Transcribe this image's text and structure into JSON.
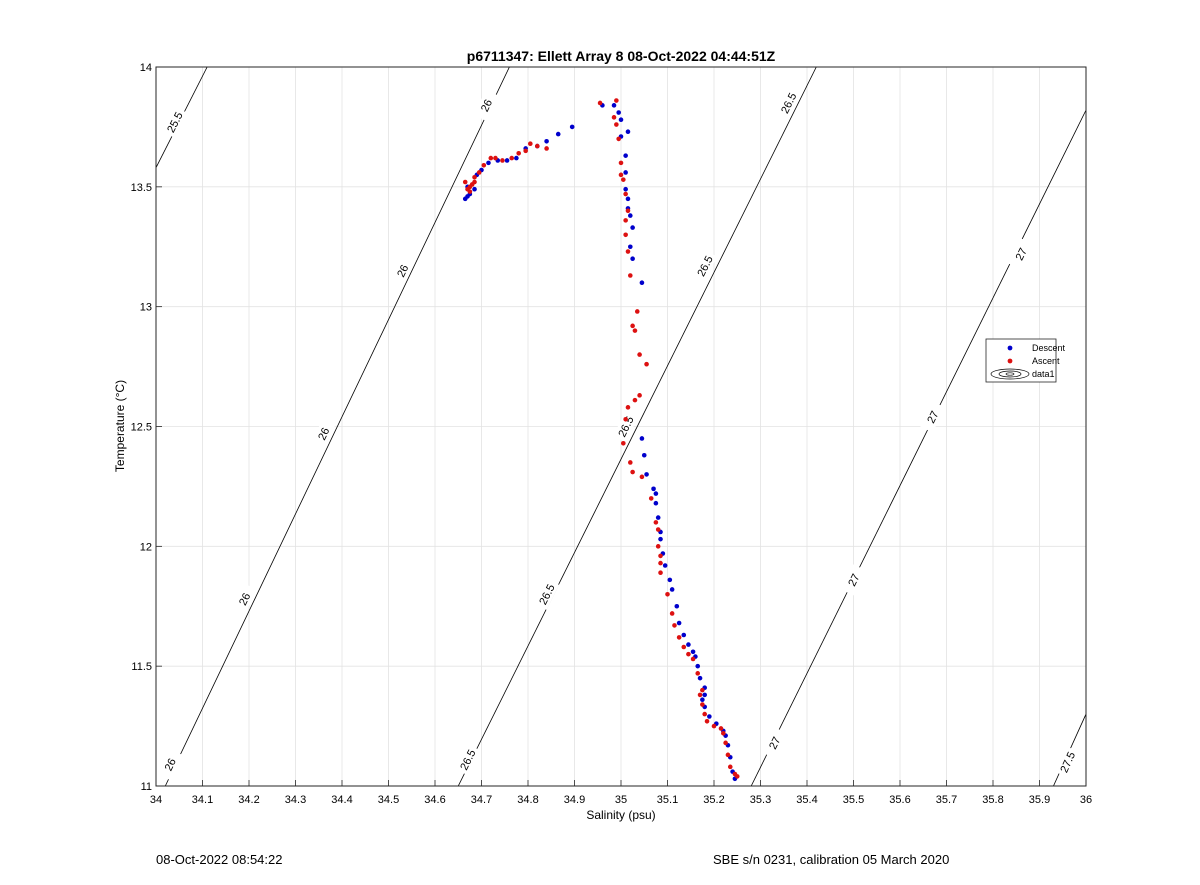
{
  "footer": {
    "timestamp": "08-Oct-2022 08:54:22",
    "sensor": "SBE s/n 0231, calibration 05 March 2020"
  },
  "colors": {
    "descent": "#0000cc",
    "ascent": "#dd1111",
    "contour": "#000000",
    "grid": "#e3e3e3"
  },
  "chart_data": {
    "type": "scatter",
    "title": "p6711347: Ellett Array 8 08-Oct-2022 04:44:51Z",
    "xlabel": "Salinity (psu)",
    "ylabel": "Temperature (°C)",
    "xlim": [
      34,
      36
    ],
    "ylim": [
      11,
      14
    ],
    "grid": true,
    "x_ticks": [
      34,
      34.1,
      34.2,
      34.3,
      34.4,
      34.5,
      34.6,
      34.7,
      34.8,
      34.9,
      35,
      35.1,
      35.2,
      35.3,
      35.4,
      35.5,
      35.6,
      35.7,
      35.8,
      35.9,
      36
    ],
    "x_tick_labels": [
      "34",
      "34.1",
      "34.2",
      "34.3",
      "34.4",
      "34.5",
      "34.6",
      "34.7",
      "34.8",
      "34.9",
      "35",
      "35.1",
      "35.2",
      "35.3",
      "35.4",
      "35.5",
      "35.6",
      "35.7",
      "35.8",
      "35.9",
      "36"
    ],
    "y_ticks": [
      11,
      11.5,
      12,
      12.5,
      13,
      13.5,
      14
    ],
    "y_tick_labels": [
      "11",
      "11.5",
      "12",
      "12.5",
      "13",
      "13.5",
      "14"
    ],
    "legend": {
      "placement": "right",
      "entries": [
        "Descent",
        "Ascent",
        "data1"
      ]
    },
    "contours": [
      {
        "level": "25.5",
        "points": [
          [
            34.0,
            13.58
          ],
          [
            34.11,
            14.0
          ]
        ],
        "labels": [
          {
            "x": 34.04,
            "y": 13.77
          }
        ]
      },
      {
        "level": "26",
        "points": [
          [
            34.02,
            11.0
          ],
          [
            34.76,
            14.0
          ]
        ],
        "labels": [
          {
            "x": 34.03,
            "y": 11.09
          },
          {
            "x": 34.19,
            "y": 11.78
          },
          {
            "x": 34.36,
            "y": 12.47
          },
          {
            "x": 34.53,
            "y": 13.15
          },
          {
            "x": 34.71,
            "y": 13.84
          }
        ]
      },
      {
        "level": "26.5",
        "points": [
          [
            34.65,
            11.0
          ],
          [
            35.42,
            14.0
          ]
        ],
        "labels": [
          {
            "x": 34.67,
            "y": 11.11
          },
          {
            "x": 34.84,
            "y": 11.8
          },
          {
            "x": 35.01,
            "y": 12.5
          },
          {
            "x": 35.18,
            "y": 13.17
          },
          {
            "x": 35.36,
            "y": 13.85
          }
        ]
      },
      {
        "level": "27",
        "points": [
          [
            35.28,
            11.0
          ],
          [
            36.0,
            13.82
          ]
        ],
        "labels": [
          {
            "x": 35.33,
            "y": 11.18
          },
          {
            "x": 35.5,
            "y": 11.86
          },
          {
            "x": 35.67,
            "y": 12.54
          },
          {
            "x": 35.86,
            "y": 13.22
          }
        ]
      },
      {
        "level": "27.5",
        "points": [
          [
            35.93,
            11.0
          ],
          [
            36.0,
            11.3
          ]
        ],
        "labels": [
          {
            "x": 35.96,
            "y": 11.1
          }
        ]
      }
    ],
    "series": [
      {
        "name": "Descent",
        "marker": "dot",
        "points": [
          [
            35.245,
            11.03
          ],
          [
            35.24,
            11.06
          ],
          [
            35.235,
            11.12
          ],
          [
            35.23,
            11.17
          ],
          [
            35.225,
            11.21
          ],
          [
            35.22,
            11.23
          ],
          [
            35.205,
            11.26
          ],
          [
            35.19,
            11.29
          ],
          [
            35.18,
            11.33
          ],
          [
            35.175,
            11.36
          ],
          [
            35.18,
            11.38
          ],
          [
            35.18,
            11.41
          ],
          [
            35.17,
            11.45
          ],
          [
            35.165,
            11.5
          ],
          [
            35.16,
            11.54
          ],
          [
            35.155,
            11.56
          ],
          [
            35.145,
            11.59
          ],
          [
            35.135,
            11.63
          ],
          [
            35.125,
            11.68
          ],
          [
            35.12,
            11.75
          ],
          [
            35.11,
            11.82
          ],
          [
            35.105,
            11.86
          ],
          [
            35.095,
            11.92
          ],
          [
            35.09,
            11.97
          ],
          [
            35.085,
            12.03
          ],
          [
            35.085,
            12.06
          ],
          [
            35.08,
            12.12
          ],
          [
            35.075,
            12.18
          ],
          [
            35.075,
            12.22
          ],
          [
            35.07,
            12.24
          ],
          [
            35.055,
            12.3
          ],
          [
            35.05,
            12.38
          ],
          [
            35.045,
            12.45
          ],
          [
            35.025,
            13.2
          ],
          [
            35.045,
            13.1
          ],
          [
            35.02,
            13.25
          ],
          [
            35.025,
            13.33
          ],
          [
            35.02,
            13.38
          ],
          [
            35.015,
            13.41
          ],
          [
            35.015,
            13.45
          ],
          [
            35.01,
            13.49
          ],
          [
            35.01,
            13.56
          ],
          [
            35.01,
            13.63
          ],
          [
            35.0,
            13.71
          ],
          [
            35.015,
            13.73
          ],
          [
            35.0,
            13.78
          ],
          [
            34.995,
            13.81
          ],
          [
            34.985,
            13.84
          ],
          [
            34.96,
            13.84
          ],
          [
            34.895,
            13.75
          ],
          [
            34.865,
            13.72
          ],
          [
            34.84,
            13.69
          ],
          [
            34.82,
            13.67
          ],
          [
            34.795,
            13.66
          ],
          [
            34.775,
            13.62
          ],
          [
            34.755,
            13.61
          ],
          [
            34.735,
            13.61
          ],
          [
            34.715,
            13.6
          ],
          [
            34.7,
            13.57
          ],
          [
            34.69,
            13.55
          ],
          [
            34.685,
            13.49
          ],
          [
            34.675,
            13.47
          ],
          [
            34.67,
            13.46
          ],
          [
            34.665,
            13.45
          ],
          [
            34.67,
            13.5
          ]
        ]
      },
      {
        "name": "Ascent",
        "marker": "dot",
        "points": [
          [
            35.25,
            11.04
          ],
          [
            35.245,
            11.05
          ],
          [
            35.235,
            11.08
          ],
          [
            35.23,
            11.13
          ],
          [
            35.225,
            11.18
          ],
          [
            35.22,
            11.22
          ],
          [
            35.215,
            11.24
          ],
          [
            35.2,
            11.25
          ],
          [
            35.185,
            11.27
          ],
          [
            35.18,
            11.3
          ],
          [
            35.175,
            11.34
          ],
          [
            35.17,
            11.38
          ],
          [
            35.175,
            11.4
          ],
          [
            35.165,
            11.47
          ],
          [
            35.155,
            11.53
          ],
          [
            35.145,
            11.55
          ],
          [
            35.135,
            11.58
          ],
          [
            35.125,
            11.62
          ],
          [
            35.115,
            11.67
          ],
          [
            35.11,
            11.72
          ],
          [
            35.1,
            11.8
          ],
          [
            35.085,
            11.89
          ],
          [
            35.085,
            11.93
          ],
          [
            35.085,
            11.96
          ],
          [
            35.08,
            12.0
          ],
          [
            35.08,
            12.07
          ],
          [
            35.075,
            12.1
          ],
          [
            35.065,
            12.2
          ],
          [
            35.045,
            12.29
          ],
          [
            35.025,
            12.31
          ],
          [
            35.02,
            12.35
          ],
          [
            35.005,
            12.43
          ],
          [
            35.01,
            12.53
          ],
          [
            35.015,
            12.58
          ],
          [
            35.03,
            12.61
          ],
          [
            35.04,
            12.63
          ],
          [
            35.055,
            12.76
          ],
          [
            35.04,
            12.8
          ],
          [
            35.025,
            12.92
          ],
          [
            35.03,
            12.9
          ],
          [
            35.035,
            12.98
          ],
          [
            35.02,
            13.13
          ],
          [
            35.015,
            13.23
          ],
          [
            35.01,
            13.3
          ],
          [
            35.01,
            13.36
          ],
          [
            35.015,
            13.4
          ],
          [
            35.01,
            13.47
          ],
          [
            35.005,
            13.53
          ],
          [
            35.0,
            13.55
          ],
          [
            35.0,
            13.6
          ],
          [
            34.995,
            13.7
          ],
          [
            34.99,
            13.76
          ],
          [
            34.985,
            13.79
          ],
          [
            34.99,
            13.86
          ],
          [
            34.955,
            13.85
          ],
          [
            34.84,
            13.66
          ],
          [
            34.82,
            13.67
          ],
          [
            34.805,
            13.68
          ],
          [
            34.795,
            13.65
          ],
          [
            34.78,
            13.64
          ],
          [
            34.765,
            13.62
          ],
          [
            34.745,
            13.61
          ],
          [
            34.73,
            13.62
          ],
          [
            34.72,
            13.62
          ],
          [
            34.705,
            13.59
          ],
          [
            34.695,
            13.56
          ],
          [
            34.685,
            13.54
          ],
          [
            34.685,
            13.52
          ],
          [
            34.675,
            13.5
          ],
          [
            34.67,
            13.49
          ],
          [
            34.68,
            13.51
          ],
          [
            34.665,
            13.52
          ],
          [
            34.675,
            13.48
          ]
        ]
      }
    ]
  }
}
